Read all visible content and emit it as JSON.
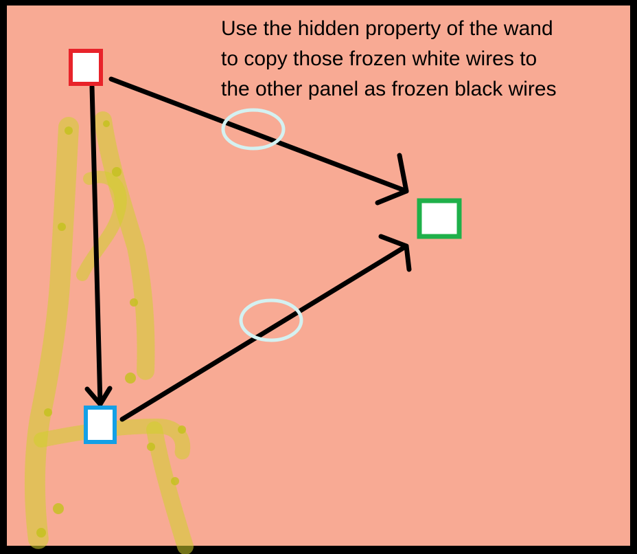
{
  "caption": {
    "lines": [
      "Use the hidden property of the wand",
      "to copy those frozen white wires to",
      "the other panel as frozen black wires"
    ]
  },
  "colors": {
    "background": "#f8aa94",
    "frame": "#000000",
    "panel_red_border": "#e8232a",
    "panel_blue_border": "#14a0e6",
    "panel_green_border": "#1fb04a",
    "panel_fill": "#ffffff",
    "wire": "#000000",
    "frozen_ring": "#d4f1f1",
    "scribble": "#cfd02c"
  },
  "diagram": {
    "nodes": [
      {
        "id": "red-panel",
        "border": "red"
      },
      {
        "id": "blue-panel",
        "border": "blue"
      },
      {
        "id": "green-panel",
        "border": "green"
      }
    ],
    "wires": [
      {
        "from": "red-panel",
        "to": "blue-panel",
        "frozen": false
      },
      {
        "from": "red-panel",
        "to": "green-panel",
        "frozen": true
      },
      {
        "from": "blue-panel",
        "to": "green-panel",
        "frozen": true
      }
    ]
  }
}
